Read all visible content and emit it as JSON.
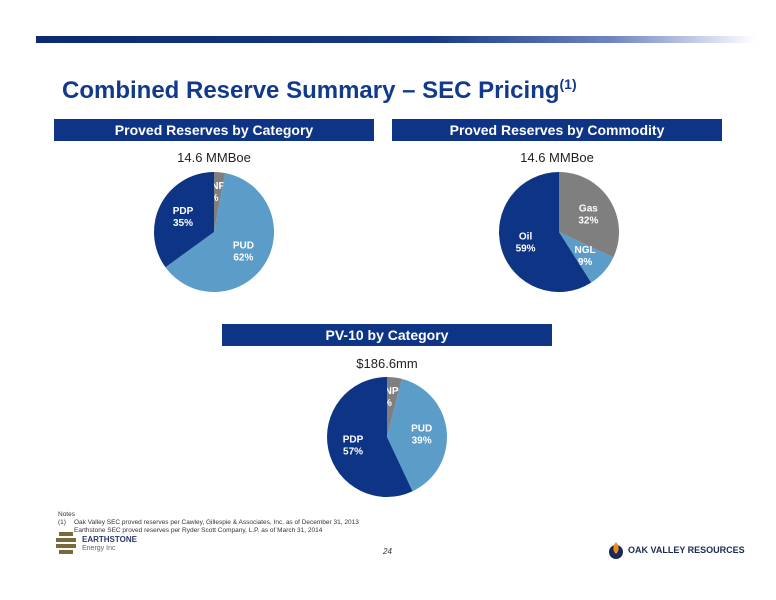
{
  "title": "Combined Reserve Summary – SEC Pricing",
  "title_sup": "(1)",
  "colors": {
    "dark_blue": "#0e3585",
    "light_blue": "#5b9dc8",
    "gray": "#7f7f7f"
  },
  "chart_data": [
    {
      "type": "pie",
      "title": "Proved Reserves by Category",
      "subtitle": "14.6 MMBoe",
      "slices": [
        {
          "label": "PDNP",
          "pct_label": "3%",
          "value": 3,
          "color": "#7f7f7f"
        },
        {
          "label": "PUD",
          "pct_label": "62%",
          "value": 62,
          "color": "#5b9dc8"
        },
        {
          "label": "PDP",
          "pct_label": "35%",
          "value": 35,
          "color": "#0e3585"
        }
      ]
    },
    {
      "type": "pie",
      "title": "Proved Reserves by Commodity",
      "subtitle": "14.6 MMBoe",
      "slices": [
        {
          "label": "Gas",
          "pct_label": "32%",
          "value": 32,
          "color": "#7f7f7f"
        },
        {
          "label": "NGL",
          "pct_label": "9%",
          "value": 9,
          "color": "#5b9dc8"
        },
        {
          "label": "Oil",
          "pct_label": "59%",
          "value": 59,
          "color": "#0e3585"
        }
      ]
    },
    {
      "type": "pie",
      "title": "PV-10 by Category",
      "subtitle": "$186.6mm",
      "slices": [
        {
          "label": "PDNP",
          "pct_label": "4%",
          "value": 4,
          "color": "#7f7f7f"
        },
        {
          "label": "PUD",
          "pct_label": "39%",
          "value": 39,
          "color": "#5b9dc8"
        },
        {
          "label": "PDP",
          "pct_label": "57%",
          "value": 57,
          "color": "#0e3585"
        }
      ]
    }
  ],
  "notes": {
    "heading": "Notes",
    "num": "(1)",
    "line1": "Oak Valley SEC proved reserves per Cawley, Gillespie & Associates, Inc. as of December 31, 2013",
    "line2": "Earthstone SEC proved reserves per Ryder Scott Company, L.P. as of March 31, 2014"
  },
  "page_number": "24",
  "logo_left": {
    "name": "EARTHSTONE",
    "sub": "Energy Inc"
  },
  "logo_right": {
    "name": "OAK VALLEY RESOURCES"
  }
}
